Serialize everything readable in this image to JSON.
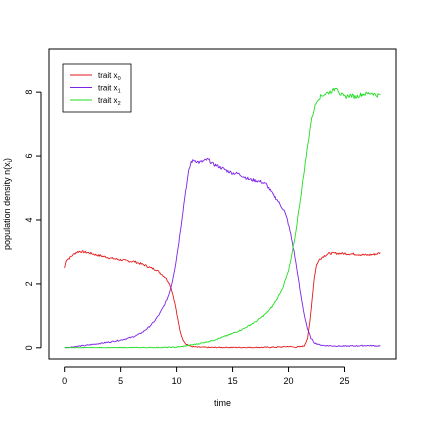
{
  "chart_data": {
    "type": "line",
    "title": "",
    "xlabel": "time",
    "ylabel_main": "population density n(x",
    "ylabel_sub": "i",
    "ylabel_end": ")",
    "xlim": [
      -1.4,
      29.6
    ],
    "ylim": [
      -0.35,
      9.35
    ],
    "xticks": [
      0,
      5,
      10,
      15,
      20,
      25
    ],
    "yticks": [
      0,
      2,
      4,
      6,
      8
    ],
    "grid": false,
    "legend_position": "top-left",
    "series": [
      {
        "name_main": "trait x",
        "name_sub": "0",
        "color": "#e31a1c",
        "points": [
          [
            0,
            2.5
          ],
          [
            0.15,
            2.75
          ],
          [
            0.4,
            2.8
          ],
          [
            0.7,
            2.9
          ],
          [
            1.0,
            2.98
          ],
          [
            1.3,
            3.02
          ],
          [
            1.7,
            3.0
          ],
          [
            2.2,
            2.97
          ],
          [
            2.7,
            2.92
          ],
          [
            3.2,
            2.88
          ],
          [
            3.7,
            2.84
          ],
          [
            4.2,
            2.8
          ],
          [
            4.7,
            2.77
          ],
          [
            5.2,
            2.74
          ],
          [
            5.7,
            2.71
          ],
          [
            6.2,
            2.7
          ],
          [
            6.7,
            2.64
          ],
          [
            7.2,
            2.58
          ],
          [
            7.7,
            2.5
          ],
          [
            8.2,
            2.44
          ],
          [
            8.6,
            2.32
          ],
          [
            9.0,
            2.2
          ],
          [
            9.3,
            2.05
          ],
          [
            9.5,
            1.88
          ],
          [
            9.7,
            1.62
          ],
          [
            9.9,
            1.3
          ],
          [
            10.1,
            0.9
          ],
          [
            10.3,
            0.55
          ],
          [
            10.5,
            0.3
          ],
          [
            10.8,
            0.13
          ],
          [
            11.2,
            0.05
          ],
          [
            11.8,
            0.02
          ],
          [
            13,
            0.01
          ],
          [
            15,
            0.01
          ],
          [
            17,
            0.01
          ],
          [
            19,
            0.02
          ],
          [
            20,
            0.04
          ],
          [
            20.6,
            0.02
          ],
          [
            21.0,
            0.03
          ],
          [
            21.4,
            0.06
          ],
          [
            21.7,
            0.3
          ],
          [
            21.9,
            0.8
          ],
          [
            22.1,
            1.5
          ],
          [
            22.3,
            2.2
          ],
          [
            22.5,
            2.6
          ],
          [
            22.8,
            2.78
          ],
          [
            23.2,
            2.88
          ],
          [
            23.6,
            2.95
          ],
          [
            24,
            2.96
          ],
          [
            25,
            2.95
          ],
          [
            26,
            2.93
          ],
          [
            27,
            2.9
          ],
          [
            27.5,
            2.92
          ],
          [
            27.9,
            2.94
          ],
          [
            28.2,
            2.98
          ]
        ]
      },
      {
        "name_main": "trait x",
        "name_sub": "1",
        "color": "#7b24e6",
        "points": [
          [
            0,
            0
          ],
          [
            1,
            0.04
          ],
          [
            2,
            0.08
          ],
          [
            3,
            0.13
          ],
          [
            4,
            0.18
          ],
          [
            5,
            0.24
          ],
          [
            6,
            0.33
          ],
          [
            6.5,
            0.4
          ],
          [
            7,
            0.5
          ],
          [
            7.5,
            0.64
          ],
          [
            8,
            0.82
          ],
          [
            8.5,
            1.07
          ],
          [
            9,
            1.4
          ],
          [
            9.3,
            1.65
          ],
          [
            9.6,
            2.05
          ],
          [
            9.9,
            2.6
          ],
          [
            10.2,
            3.3
          ],
          [
            10.5,
            4.1
          ],
          [
            10.8,
            4.9
          ],
          [
            11.1,
            5.55
          ],
          [
            11.3,
            5.82
          ],
          [
            11.6,
            5.87
          ],
          [
            12,
            5.8
          ],
          [
            12.4,
            5.84
          ],
          [
            12.8,
            5.9
          ],
          [
            13.2,
            5.76
          ],
          [
            13.6,
            5.7
          ],
          [
            14,
            5.63
          ],
          [
            14.5,
            5.54
          ],
          [
            15,
            5.47
          ],
          [
            15.5,
            5.45
          ],
          [
            16,
            5.36
          ],
          [
            16.5,
            5.27
          ],
          [
            17,
            5.24
          ],
          [
            17.5,
            5.2
          ],
          [
            18,
            5.12
          ],
          [
            18.3,
            4.96
          ],
          [
            18.6,
            4.8
          ],
          [
            19,
            4.62
          ],
          [
            19.3,
            4.45
          ],
          [
            19.6,
            4.3
          ],
          [
            19.9,
            4.0
          ],
          [
            20.2,
            3.55
          ],
          [
            20.5,
            3.0
          ],
          [
            20.8,
            2.35
          ],
          [
            21.1,
            1.65
          ],
          [
            21.4,
            1.05
          ],
          [
            21.7,
            0.58
          ],
          [
            22.0,
            0.3
          ],
          [
            22.3,
            0.16
          ],
          [
            22.7,
            0.1
          ],
          [
            23.2,
            0.07
          ],
          [
            24,
            0.06
          ],
          [
            25,
            0.05
          ],
          [
            26,
            0.06
          ],
          [
            27,
            0.07
          ],
          [
            28,
            0.06
          ],
          [
            28.2,
            0.06
          ]
        ]
      },
      {
        "name_main": "trait x",
        "name_sub": "2",
        "color": "#22dd22",
        "points": [
          [
            0,
            0
          ],
          [
            5,
            0.0
          ],
          [
            9,
            0.01
          ],
          [
            10,
            0.02
          ],
          [
            10.5,
            0.04
          ],
          [
            11,
            0.07
          ],
          [
            11.5,
            0.1
          ],
          [
            12,
            0.13
          ],
          [
            12.5,
            0.17
          ],
          [
            13,
            0.21
          ],
          [
            13.5,
            0.26
          ],
          [
            14,
            0.32
          ],
          [
            14.5,
            0.38
          ],
          [
            15,
            0.45
          ],
          [
            15.5,
            0.52
          ],
          [
            16,
            0.6
          ],
          [
            16.5,
            0.7
          ],
          [
            17,
            0.8
          ],
          [
            17.5,
            0.93
          ],
          [
            18,
            1.08
          ],
          [
            18.5,
            1.28
          ],
          [
            19,
            1.55
          ],
          [
            19.5,
            1.9
          ],
          [
            20,
            2.4
          ],
          [
            20.3,
            2.9
          ],
          [
            20.6,
            3.5
          ],
          [
            20.9,
            4.25
          ],
          [
            21.2,
            5.0
          ],
          [
            21.5,
            5.8
          ],
          [
            21.8,
            6.55
          ],
          [
            22.0,
            7.05
          ],
          [
            22.3,
            7.5
          ],
          [
            22.6,
            7.78
          ],
          [
            23.0,
            7.9
          ],
          [
            23.5,
            7.98
          ],
          [
            24,
            8.05
          ],
          [
            24.3,
            8.18
          ],
          [
            24.6,
            7.95
          ],
          [
            25,
            7.85
          ],
          [
            25.5,
            7.9
          ],
          [
            26,
            7.85
          ],
          [
            26.5,
            7.93
          ],
          [
            27,
            7.95
          ],
          [
            27.5,
            7.98
          ],
          [
            27.8,
            7.9
          ],
          [
            28.2,
            7.92
          ]
        ]
      }
    ]
  }
}
